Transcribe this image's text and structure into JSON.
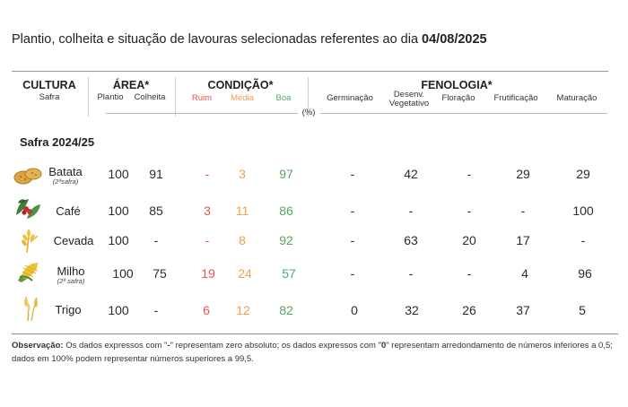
{
  "title": {
    "text": "Plantio, colheita e situação de lavouras selecionadas referentes ao dia ",
    "date": "04/08/2025"
  },
  "headers": {
    "cultura": "CULTURA",
    "safra": "Safra",
    "area": "ÁREA*",
    "plantio": "Plantio",
    "colheita": "Colheita",
    "condicao": "CONDIÇÃO*",
    "ruim": "Ruim",
    "media": "Média",
    "boa": "Boa",
    "fenologia": "FENOLOGIA*",
    "germinacao": "Germinação",
    "desenv_1": "Desenv.",
    "desenv_2": "Vegetativo",
    "floracao": "Floração",
    "frutificacao": "Frutificação",
    "maturacao": "Maturação",
    "unit": "(%)"
  },
  "section_title": "Safra 2024/25",
  "rows": [
    {
      "name": "Batata",
      "sub": "(2ªsafra)",
      "icon": "potato-icon",
      "plantio": "100",
      "colheita": "91",
      "ruim": "-",
      "media": "3",
      "boa": "97",
      "germinacao": "-",
      "desenv": "42",
      "floracao": "-",
      "frutificacao": "29",
      "maturacao": "29"
    },
    {
      "name": "Café",
      "sub": "",
      "icon": "coffee-icon",
      "plantio": "100",
      "colheita": "85",
      "ruim": "3",
      "media": "11",
      "boa": "86",
      "germinacao": "-",
      "desenv": "-",
      "floracao": "-",
      "frutificacao": "-",
      "maturacao": "100"
    },
    {
      "name": "Cevada",
      "sub": "",
      "icon": "barley-icon",
      "plantio": "100",
      "colheita": "-",
      "ruim": "-",
      "media": "8",
      "boa": "92",
      "germinacao": "-",
      "desenv": "63",
      "floracao": "20",
      "frutificacao": "17",
      "maturacao": "-"
    },
    {
      "name": "Milho",
      "sub": "(2ª safra)",
      "icon": "corn-icon",
      "plantio": "100",
      "colheita": "75",
      "ruim": "19",
      "media": "24",
      "boa": "57",
      "germinacao": "-",
      "desenv": "-",
      "floracao": "-",
      "frutificacao": "4",
      "maturacao": "96"
    },
    {
      "name": "Trigo",
      "sub": "",
      "icon": "wheat-icon",
      "plantio": "100",
      "colheita": "-",
      "ruim": "6",
      "media": "12",
      "boa": "82",
      "germinacao": "0",
      "desenv": "32",
      "floracao": "26",
      "frutificacao": "37",
      "maturacao": "5"
    }
  ],
  "note": {
    "label": "Observação:",
    "t1": " Os dados expressos com \"",
    "dash": "-",
    "t2": "\" representam zero absoluto; os dados expressos com \"",
    "zero": "0",
    "t3": "\" representam arredondamento de números inferiores a 0,5; dados em 100% podem representar números superiores a 99,5."
  }
}
